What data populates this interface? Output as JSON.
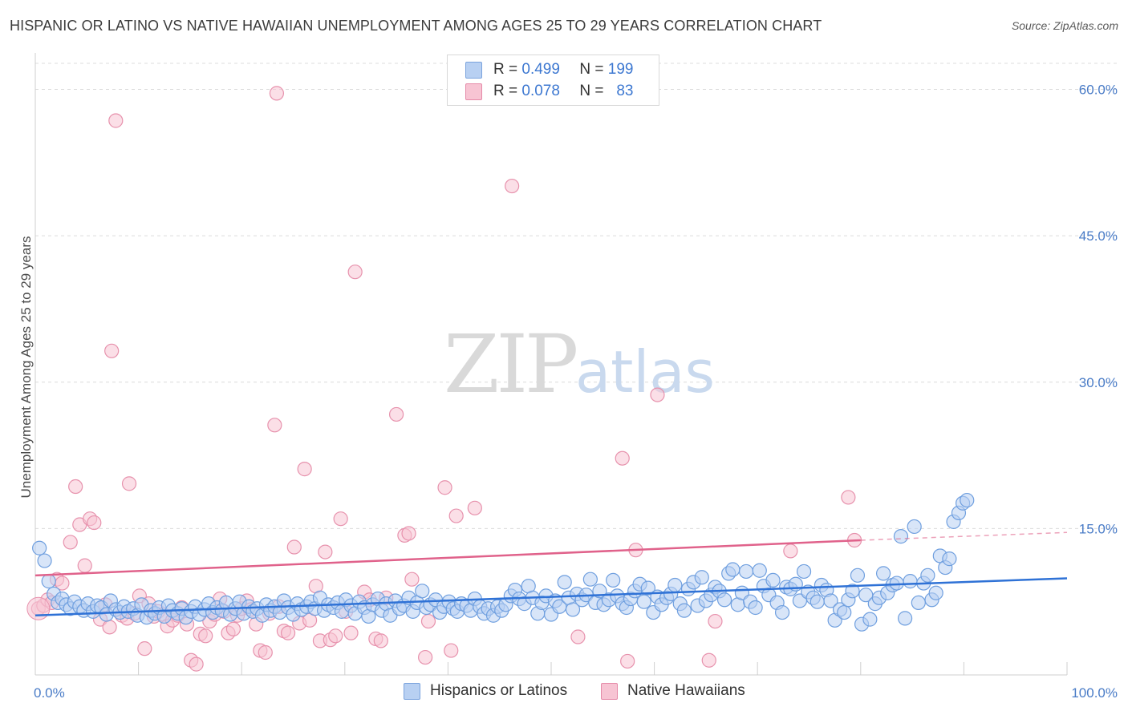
{
  "title": "HISPANIC OR LATINO VS NATIVE HAWAIIAN UNEMPLOYMENT AMONG AGES 25 TO 29 YEARS CORRELATION CHART",
  "source": "Source: ZipAtlas.com",
  "watermark": {
    "zip": "ZIP",
    "atlas": "atlas"
  },
  "legend_top": [
    {
      "r_label": "R =",
      "r_value": "0.499",
      "n_label": "N =",
      "n_value": "199"
    },
    {
      "r_label": "R =",
      "r_value": "0.078",
      "n_label": "N =",
      "n_value": "83"
    }
  ],
  "legend_bottom": [
    "Hispanics or Latinos",
    "Native Hawaiians"
  ],
  "colors": {
    "blue_fill": "#b8d0f2",
    "blue_stroke": "#6f9fdf",
    "blue_line": "#2f72d6",
    "pink_fill": "#f7c4d3",
    "pink_stroke": "#e792ad",
    "pink_line": "#e0628b",
    "tick_text": "#4a7cc7",
    "grid": "#dcdcdc"
  },
  "chart_data": {
    "type": "scatter",
    "title": "HISPANIC OR LATINO VS NATIVE HAWAIIAN UNEMPLOYMENT AMONG AGES 25 TO 29 YEARS CORRELATION CHART",
    "xlabel": "",
    "ylabel": "Unemployment Among Ages 25 to 29 years",
    "xlim": [
      0,
      100
    ],
    "ylim": [
      0,
      63
    ],
    "x_tick_labels": [
      "0.0%",
      "100.0%"
    ],
    "y_ticks": [
      15,
      30,
      45,
      60
    ],
    "y_tick_labels": [
      "15.0%",
      "30.0%",
      "45.0%",
      "60.0%"
    ],
    "series": [
      {
        "name": "Hispanics or Latinos",
        "R": 0.499,
        "N": 199,
        "trend": {
          "x": [
            0,
            100
          ],
          "y": [
            6.1,
            9.9
          ],
          "dashed_to": null
        },
        "points": [
          [
            0.4,
            13.0
          ],
          [
            0.9,
            11.7
          ],
          [
            1.3,
            9.6
          ],
          [
            1.8,
            8.3
          ],
          [
            2.2,
            7.4
          ],
          [
            2.6,
            7.8
          ],
          [
            3.0,
            7.2
          ],
          [
            3.4,
            6.8
          ],
          [
            3.8,
            7.5
          ],
          [
            4.3,
            7.0
          ],
          [
            4.7,
            6.6
          ],
          [
            5.1,
            7.3
          ],
          [
            5.6,
            6.5
          ],
          [
            6.0,
            7.1
          ],
          [
            6.4,
            6.9
          ],
          [
            6.9,
            6.2
          ],
          [
            7.3,
            7.6
          ],
          [
            7.8,
            6.7
          ],
          [
            8.2,
            6.4
          ],
          [
            8.6,
            7.0
          ],
          [
            9.0,
            6.5
          ],
          [
            9.5,
            6.8
          ],
          [
            9.9,
            6.1
          ],
          [
            10.3,
            7.2
          ],
          [
            10.8,
            5.9
          ],
          [
            11.2,
            6.6
          ],
          [
            11.6,
            6.3
          ],
          [
            12.0,
            6.9
          ],
          [
            12.5,
            6.0
          ],
          [
            12.9,
            7.1
          ],
          [
            13.3,
            6.6
          ],
          [
            13.8,
            6.3
          ],
          [
            14.2,
            6.8
          ],
          [
            14.6,
            5.9
          ],
          [
            15.1,
            6.5
          ],
          [
            15.5,
            7.0
          ],
          [
            15.9,
            6.2
          ],
          [
            16.4,
            6.7
          ],
          [
            16.8,
            7.3
          ],
          [
            17.2,
            6.4
          ],
          [
            17.6,
            6.9
          ],
          [
            18.1,
            6.6
          ],
          [
            18.5,
            7.4
          ],
          [
            18.9,
            6.2
          ],
          [
            19.4,
            6.8
          ],
          [
            19.8,
            7.5
          ],
          [
            20.2,
            6.3
          ],
          [
            20.7,
            7.0
          ],
          [
            21.1,
            6.5
          ],
          [
            21.5,
            6.8
          ],
          [
            22.0,
            6.1
          ],
          [
            22.4,
            7.2
          ],
          [
            22.8,
            6.6
          ],
          [
            23.2,
            7.0
          ],
          [
            23.7,
            6.4
          ],
          [
            24.1,
            7.6
          ],
          [
            24.5,
            6.9
          ],
          [
            25.0,
            6.2
          ],
          [
            25.4,
            7.3
          ],
          [
            25.8,
            6.7
          ],
          [
            26.3,
            7.0
          ],
          [
            26.7,
            7.5
          ],
          [
            27.1,
            6.8
          ],
          [
            27.6,
            7.9
          ],
          [
            28.0,
            6.6
          ],
          [
            28.4,
            7.2
          ],
          [
            28.9,
            6.9
          ],
          [
            29.3,
            7.4
          ],
          [
            29.7,
            6.5
          ],
          [
            30.1,
            7.7
          ],
          [
            30.6,
            7.1
          ],
          [
            31.0,
            6.3
          ],
          [
            31.4,
            7.5
          ],
          [
            31.9,
            6.9
          ],
          [
            32.3,
            6.0
          ],
          [
            32.7,
            7.2
          ],
          [
            33.2,
            7.8
          ],
          [
            33.6,
            6.6
          ],
          [
            34.0,
            7.3
          ],
          [
            34.4,
            6.1
          ],
          [
            34.9,
            7.6
          ],
          [
            35.3,
            6.8
          ],
          [
            35.7,
            7.1
          ],
          [
            36.2,
            7.9
          ],
          [
            36.6,
            6.5
          ],
          [
            37.0,
            7.4
          ],
          [
            37.5,
            8.6
          ],
          [
            37.9,
            6.9
          ],
          [
            38.3,
            7.2
          ],
          [
            38.8,
            7.7
          ],
          [
            39.2,
            6.4
          ],
          [
            39.6,
            7.0
          ],
          [
            40.1,
            7.5
          ],
          [
            40.5,
            6.8
          ],
          [
            40.9,
            6.5
          ],
          [
            41.3,
            7.3
          ],
          [
            41.8,
            7.1
          ],
          [
            42.2,
            6.6
          ],
          [
            42.6,
            7.8
          ],
          [
            43.1,
            7.0
          ],
          [
            43.5,
            6.3
          ],
          [
            43.9,
            6.8
          ],
          [
            44.4,
            6.1
          ],
          [
            44.8,
            7.0
          ],
          [
            45.2,
            6.6
          ],
          [
            45.6,
            7.2
          ],
          [
            46.1,
            8.1
          ],
          [
            46.5,
            8.7
          ],
          [
            46.9,
            7.8
          ],
          [
            47.4,
            7.3
          ],
          [
            47.8,
            9.1
          ],
          [
            48.2,
            7.9
          ],
          [
            48.7,
            6.3
          ],
          [
            49.1,
            7.4
          ],
          [
            49.5,
            8.1
          ],
          [
            50.0,
            6.2
          ],
          [
            50.4,
            7.6
          ],
          [
            50.8,
            7.0
          ],
          [
            51.3,
            9.5
          ],
          [
            51.7,
            7.9
          ],
          [
            52.1,
            6.7
          ],
          [
            52.5,
            8.3
          ],
          [
            53.0,
            7.7
          ],
          [
            53.4,
            8.2
          ],
          [
            53.8,
            9.8
          ],
          [
            54.3,
            7.4
          ],
          [
            54.7,
            8.6
          ],
          [
            55.1,
            7.2
          ],
          [
            55.6,
            7.7
          ],
          [
            56.0,
            9.7
          ],
          [
            56.4,
            8.1
          ],
          [
            56.9,
            7.3
          ],
          [
            57.3,
            6.9
          ],
          [
            57.7,
            7.8
          ],
          [
            58.1,
            8.6
          ],
          [
            58.6,
            9.3
          ],
          [
            59.0,
            7.5
          ],
          [
            59.4,
            8.9
          ],
          [
            59.9,
            6.4
          ],
          [
            60.3,
            8.0
          ],
          [
            60.7,
            7.2
          ],
          [
            61.2,
            7.9
          ],
          [
            61.6,
            8.3
          ],
          [
            62.0,
            9.2
          ],
          [
            62.5,
            7.3
          ],
          [
            62.9,
            6.6
          ],
          [
            63.3,
            8.8
          ],
          [
            63.8,
            9.5
          ],
          [
            64.2,
            7.1
          ],
          [
            64.6,
            10.0
          ],
          [
            65.0,
            7.6
          ],
          [
            65.5,
            8.2
          ],
          [
            65.9,
            9.0
          ],
          [
            66.3,
            8.6
          ],
          [
            66.8,
            7.7
          ],
          [
            67.2,
            10.4
          ],
          [
            67.6,
            10.8
          ],
          [
            68.1,
            7.2
          ],
          [
            68.5,
            8.4
          ],
          [
            68.9,
            10.6
          ],
          [
            69.3,
            7.5
          ],
          [
            69.8,
            6.9
          ],
          [
            70.2,
            10.7
          ],
          [
            70.6,
            9.1
          ],
          [
            71.1,
            8.2
          ],
          [
            71.5,
            9.7
          ],
          [
            71.9,
            7.4
          ],
          [
            72.4,
            6.4
          ],
          [
            72.8,
            9.0
          ],
          [
            73.2,
            8.8
          ],
          [
            73.7,
            9.3
          ],
          [
            74.1,
            7.6
          ],
          [
            74.5,
            10.6
          ],
          [
            74.9,
            8.5
          ],
          [
            75.4,
            7.9
          ],
          [
            75.8,
            7.5
          ],
          [
            76.2,
            9.2
          ],
          [
            76.7,
            8.7
          ],
          [
            77.1,
            7.6
          ],
          [
            77.5,
            5.6
          ],
          [
            78.0,
            6.7
          ],
          [
            78.4,
            6.4
          ],
          [
            78.8,
            7.7
          ],
          [
            79.2,
            8.6
          ],
          [
            79.7,
            10.2
          ],
          [
            80.1,
            5.2
          ],
          [
            80.5,
            8.2
          ],
          [
            80.9,
            5.7
          ],
          [
            81.4,
            7.3
          ],
          [
            81.8,
            7.9
          ],
          [
            82.2,
            10.4
          ],
          [
            82.6,
            8.4
          ],
          [
            83.1,
            9.2
          ],
          [
            83.5,
            9.4
          ],
          [
            83.9,
            14.2
          ],
          [
            84.3,
            5.8
          ],
          [
            84.8,
            9.6
          ],
          [
            85.2,
            15.2
          ],
          [
            85.6,
            7.4
          ],
          [
            86.1,
            9.4
          ],
          [
            86.5,
            10.2
          ],
          [
            86.9,
            7.7
          ],
          [
            87.3,
            8.4
          ],
          [
            87.7,
            12.2
          ],
          [
            88.2,
            11.0
          ],
          [
            88.6,
            11.9
          ],
          [
            89.0,
            15.7
          ],
          [
            89.5,
            16.6
          ],
          [
            89.9,
            17.6
          ],
          [
            90.3,
            17.9
          ]
        ]
      },
      {
        "name": "Native Hawaiians",
        "R": 0.078,
        "N": 83,
        "trend": {
          "x": [
            0,
            80
          ],
          "y": [
            10.2,
            13.8
          ],
          "dashed_to": [
            100,
            14.6
          ]
        },
        "points": [
          [
            0.3,
            6.8
          ],
          [
            0.8,
            7.1
          ],
          [
            1.2,
            7.7
          ],
          [
            1.6,
            7.4
          ],
          [
            2.1,
            9.8
          ],
          [
            2.6,
            9.4
          ],
          [
            3.4,
            13.6
          ],
          [
            3.9,
            19.3
          ],
          [
            4.3,
            15.4
          ],
          [
            4.8,
            11.2
          ],
          [
            5.3,
            16.0
          ],
          [
            5.7,
            15.6
          ],
          [
            6.3,
            5.7
          ],
          [
            6.8,
            7.2
          ],
          [
            7.2,
            4.9
          ],
          [
            7.4,
            33.2
          ],
          [
            7.8,
            56.8
          ],
          [
            8.4,
            6.1
          ],
          [
            8.9,
            5.8
          ],
          [
            9.1,
            19.6
          ],
          [
            9.6,
            6.3
          ],
          [
            10.1,
            8.1
          ],
          [
            10.6,
            2.7
          ],
          [
            11.0,
            7.3
          ],
          [
            11.5,
            6.0
          ],
          [
            11.9,
            6.5
          ],
          [
            12.4,
            6.2
          ],
          [
            12.8,
            5.0
          ],
          [
            13.3,
            5.6
          ],
          [
            13.8,
            6.1
          ],
          [
            14.2,
            6.9
          ],
          [
            14.7,
            5.2
          ],
          [
            15.1,
            1.5
          ],
          [
            15.6,
            1.1
          ],
          [
            16.0,
            4.2
          ],
          [
            16.5,
            4.0
          ],
          [
            16.9,
            5.5
          ],
          [
            17.4,
            6.2
          ],
          [
            17.9,
            7.8
          ],
          [
            18.3,
            6.5
          ],
          [
            18.7,
            4.3
          ],
          [
            19.2,
            4.7
          ],
          [
            19.6,
            6.1
          ],
          [
            20.0,
            6.8
          ],
          [
            20.5,
            7.6
          ],
          [
            20.9,
            6.7
          ],
          [
            21.4,
            5.2
          ],
          [
            21.8,
            2.5
          ],
          [
            22.3,
            2.3
          ],
          [
            22.7,
            6.3
          ],
          [
            23.2,
            25.6
          ],
          [
            23.4,
            59.6
          ],
          [
            23.6,
            7.0
          ],
          [
            24.1,
            4.5
          ],
          [
            24.5,
            4.3
          ],
          [
            25.1,
            13.1
          ],
          [
            25.6,
            5.3
          ],
          [
            26.1,
            21.1
          ],
          [
            26.6,
            5.6
          ],
          [
            27.2,
            9.1
          ],
          [
            27.6,
            3.5
          ],
          [
            28.1,
            12.6
          ],
          [
            28.6,
            3.6
          ],
          [
            29.1,
            4.0
          ],
          [
            29.6,
            16.0
          ],
          [
            30.1,
            6.5
          ],
          [
            30.6,
            4.3
          ],
          [
            31.0,
            41.3
          ],
          [
            31.9,
            8.5
          ],
          [
            32.4,
            7.7
          ],
          [
            33.0,
            3.7
          ],
          [
            33.5,
            3.5
          ],
          [
            34.0,
            7.9
          ],
          [
            35.0,
            26.7
          ],
          [
            35.8,
            14.3
          ],
          [
            36.2,
            14.5
          ],
          [
            36.5,
            9.8
          ],
          [
            37.8,
            1.8
          ],
          [
            38.1,
            5.5
          ],
          [
            39.7,
            19.2
          ],
          [
            40.3,
            2.5
          ],
          [
            40.8,
            16.3
          ],
          [
            42.6,
            17.1
          ],
          [
            46.2,
            50.1
          ],
          [
            52.6,
            3.9
          ],
          [
            56.9,
            22.2
          ],
          [
            57.4,
            1.4
          ],
          [
            58.2,
            12.8
          ],
          [
            60.3,
            28.7
          ],
          [
            65.3,
            1.5
          ],
          [
            65.9,
            5.5
          ],
          [
            73.2,
            12.7
          ],
          [
            78.8,
            18.2
          ],
          [
            79.4,
            13.8
          ]
        ]
      }
    ]
  }
}
